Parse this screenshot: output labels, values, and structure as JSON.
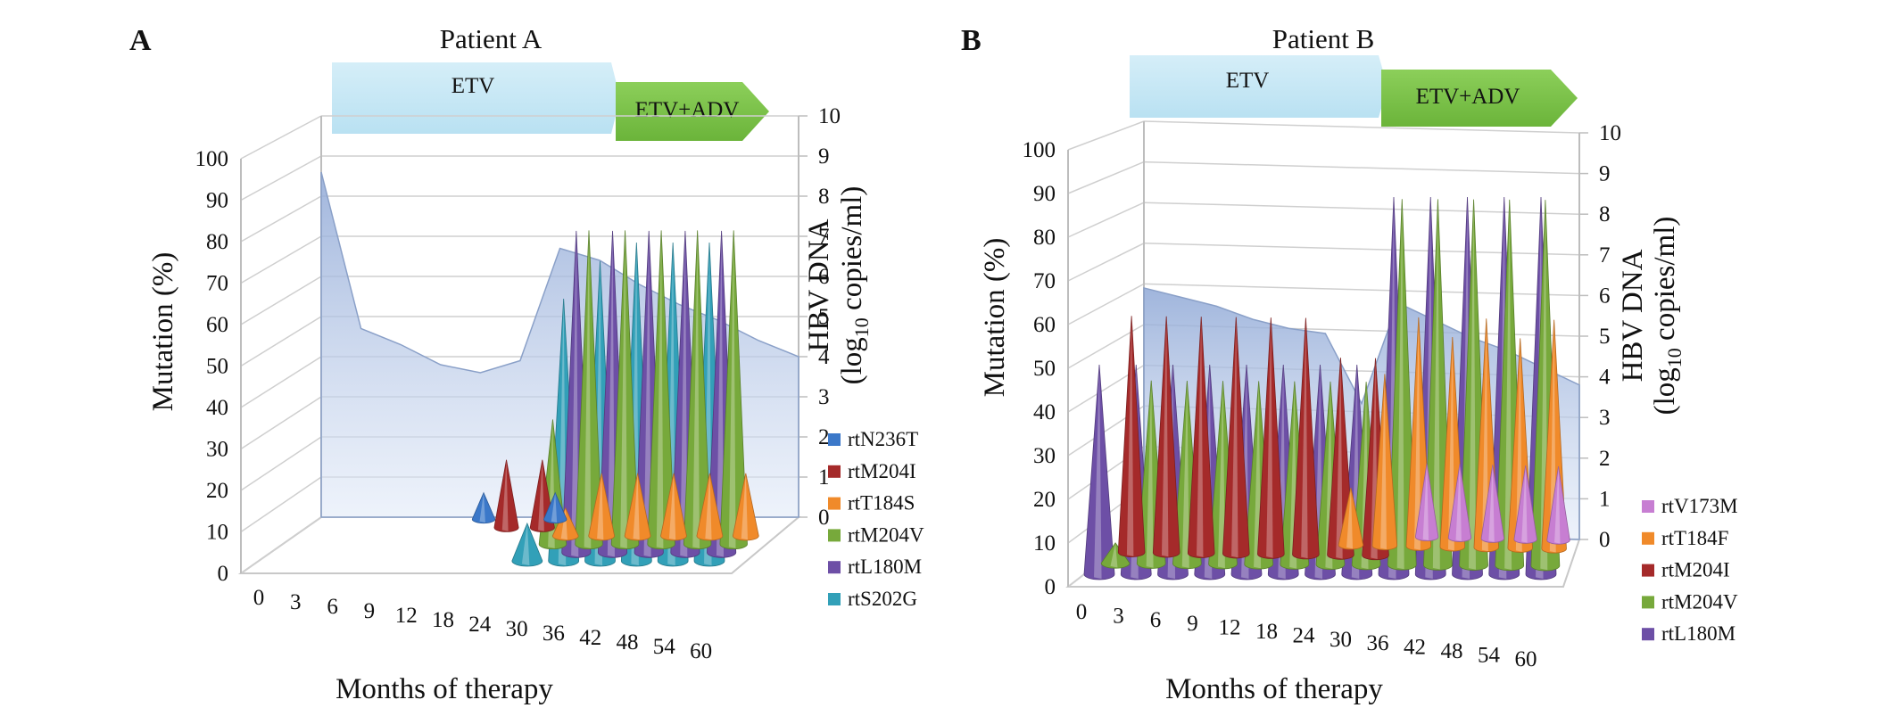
{
  "figure": {
    "panels_label": "3D cone chart of mutation frequency and HBV DNA over months of therapy"
  },
  "chart_data": [
    {
      "type": "bar",
      "panel": "A",
      "title": "Patient A",
      "therapy": {
        "first": "ETV",
        "second": "ETV+ADV"
      },
      "xlabel": "Months of therapy",
      "ylabel": "Mutation (%)",
      "y2label_line1": "HBV DNA",
      "y2label_line2": "(log",
      "y2label_sub": "10",
      "y2label_line2b": " copies/ml)",
      "ylim": [
        0,
        100
      ],
      "y2lim": [
        0,
        10
      ],
      "yticks": [
        "0",
        "10",
        "20",
        "30",
        "40",
        "50",
        "60",
        "70",
        "80",
        "90",
        "100"
      ],
      "y2ticks": [
        "0",
        "1",
        "2",
        "3",
        "4",
        "5",
        "6",
        "7",
        "8",
        "9",
        "10"
      ],
      "categories": [
        "0",
        "3",
        "6",
        "9",
        "12",
        "18",
        "24",
        "30",
        "36",
        "42",
        "48",
        "54",
        "60"
      ],
      "area_series": {
        "name": "HBV DNA",
        "values": [
          8.6,
          4.7,
          4.3,
          3.8,
          3.6,
          3.9,
          6.7,
          6.4,
          5.8,
          5.3,
          4.9,
          4.4,
          4.0
        ]
      },
      "series": [
        {
          "name": "rtN236T",
          "color": "#3b78c9",
          "values": [
            0,
            0,
            0,
            0,
            8,
            0,
            8,
            0,
            0,
            0,
            0,
            0,
            0
          ]
        },
        {
          "name": "rtM204I",
          "color": "#a52a2a",
          "values": [
            0,
            0,
            0,
            0,
            0,
            20,
            20,
            0,
            0,
            0,
            0,
            0,
            0
          ]
        },
        {
          "name": "rtT184S",
          "color": "#f08a2a",
          "values": [
            0,
            0,
            0,
            0,
            0,
            0,
            0,
            8,
            18,
            18,
            18,
            18,
            18
          ]
        },
        {
          "name": "rtM204V",
          "color": "#77a93b",
          "values": [
            0,
            0,
            0,
            0,
            0,
            0,
            0,
            35,
            88,
            88,
            88,
            88,
            88
          ]
        },
        {
          "name": "rtL180M",
          "color": "#6d4fa6",
          "values": [
            0,
            0,
            0,
            0,
            0,
            0,
            0,
            0,
            88,
            88,
            88,
            88,
            88
          ]
        },
        {
          "name": "rtS202G",
          "color": "#32a0b8",
          "values": [
            0,
            0,
            0,
            0,
            0,
            0,
            0,
            10,
            70,
            80,
            85,
            85,
            85
          ]
        }
      ]
    },
    {
      "type": "bar",
      "panel": "B",
      "title": "Patient B",
      "therapy": {
        "first": "ETV",
        "second": "ETV+ADV"
      },
      "xlabel": "Months of therapy",
      "ylabel": "Mutation (%)",
      "y2label_line1": "HBV DNA",
      "y2label_line2": "(log",
      "y2label_sub": "10",
      "y2label_line2b": " copies/ml)",
      "ylim": [
        0,
        100
      ],
      "y2lim": [
        0,
        10
      ],
      "yticks": [
        "0",
        "10",
        "20",
        "30",
        "40",
        "50",
        "60",
        "70",
        "80",
        "90",
        "100"
      ],
      "y2ticks": [
        "0",
        "1",
        "2",
        "3",
        "4",
        "5",
        "6",
        "7",
        "8",
        "9",
        "10"
      ],
      "categories": [
        "0",
        "3",
        "6",
        "9",
        "12",
        "18",
        "24",
        "30",
        "36",
        "42",
        "48",
        "54",
        "60"
      ],
      "area_series": {
        "name": "HBV DNA",
        "values": [
          5.9,
          5.7,
          5.5,
          5.2,
          5.0,
          4.9,
          3.2,
          5.7,
          5.3,
          4.9,
          4.6,
          4.2,
          3.8
        ]
      },
      "series": [
        {
          "name": "rtV173M",
          "color": "#c77ed2",
          "values": [
            0,
            0,
            0,
            0,
            0,
            0,
            0,
            0,
            20,
            20,
            20,
            20,
            20
          ]
        },
        {
          "name": "rtT184F",
          "color": "#f08a2a",
          "values": [
            0,
            0,
            0,
            0,
            0,
            0,
            15,
            45,
            60,
            55,
            60,
            55,
            60
          ]
        },
        {
          "name": "rtM204I",
          "color": "#a52a2a",
          "values": [
            60,
            60,
            60,
            60,
            60,
            60,
            50,
            50,
            0,
            0,
            0,
            0,
            0
          ]
        },
        {
          "name": "rtM204V",
          "color": "#77a93b",
          "values": [
            5,
            45,
            45,
            45,
            45,
            45,
            45,
            45,
            90,
            90,
            90,
            90,
            90
          ]
        },
        {
          "name": "rtL180M",
          "color": "#6d4fa6",
          "values": [
            50,
            50,
            50,
            50,
            50,
            50,
            50,
            50,
            90,
            90,
            90,
            90,
            90
          ]
        }
      ]
    }
  ]
}
